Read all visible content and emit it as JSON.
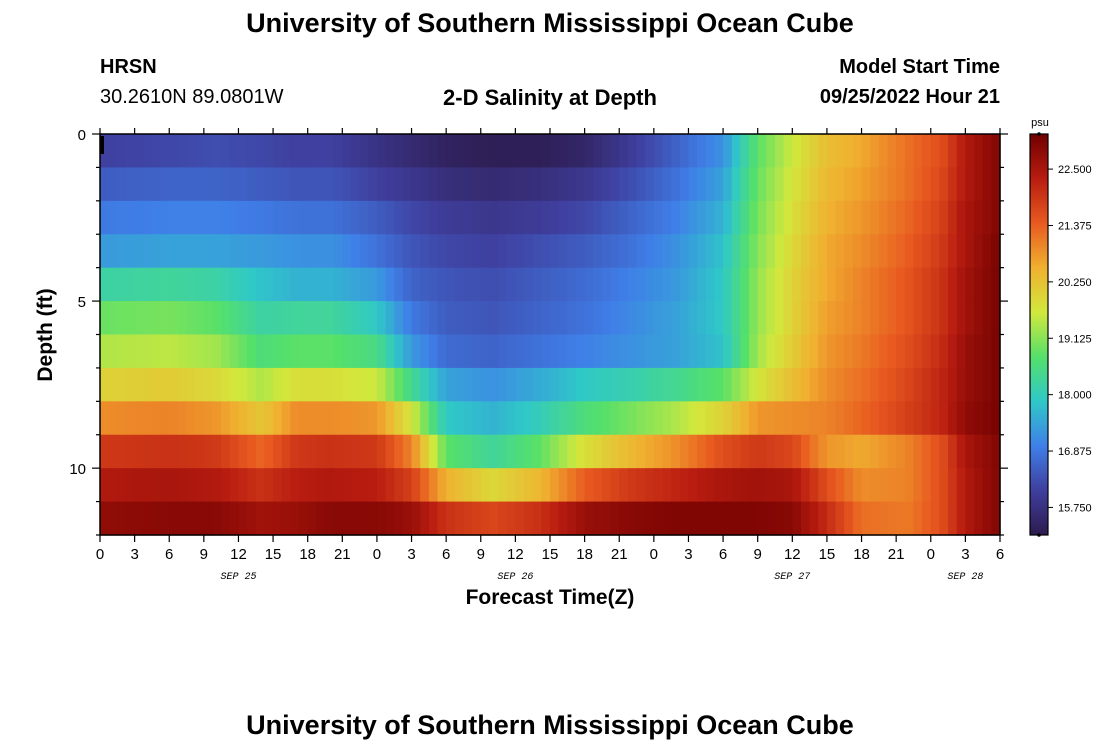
{
  "header": {
    "title": "University of Southern Mississippi Ocean Cube",
    "station": "HRSN",
    "coords": "30.2610N  89.0801W",
    "subtitle": "2-D Salinity at Depth",
    "model_start_label": "Model Start Time",
    "model_start_value": "09/25/2022 Hour 21",
    "footer_title": "University of Southern Mississippi Ocean Cube"
  },
  "chart_data": {
    "type": "heatmap",
    "title": "2-D Salinity at Depth",
    "xlabel": "Forecast Time(Z)",
    "ylabel": "Depth (ft)",
    "x_tick_labels": [
      "0",
      "3",
      "6",
      "9",
      "12",
      "15",
      "18",
      "21",
      "0",
      "3",
      "6",
      "9",
      "12",
      "15",
      "18",
      "21",
      "0",
      "3",
      "6",
      "9",
      "12",
      "15",
      "18",
      "21",
      "0",
      "3",
      "6"
    ],
    "x_date_labels": [
      {
        "label": "SEP 25",
        "tick_index": 4
      },
      {
        "label": "SEP 26",
        "tick_index": 12
      },
      {
        "label": "SEP 27",
        "tick_index": 20
      },
      {
        "label": "SEP 28",
        "tick_index": 25
      }
    ],
    "y_tick_labels": [
      "0",
      "5",
      "10"
    ],
    "y_tick_values": [
      0,
      5,
      10
    ],
    "ylim": [
      0,
      12
    ],
    "xlim_hours": [
      0,
      78
    ],
    "colorbar": {
      "unit": "psu",
      "min": 15.2,
      "max": 23.2,
      "ticks": [
        "15.750",
        "16.875",
        "18.000",
        "19.125",
        "20.250",
        "21.375",
        "22.500"
      ],
      "tick_values": [
        15.75,
        16.875,
        18.0,
        19.125,
        20.25,
        21.375,
        22.5
      ],
      "stops": [
        "#2d1b4e",
        "#3f3f9e",
        "#3f7fe8",
        "#2fc8c8",
        "#55e06a",
        "#d2e83c",
        "#f0b030",
        "#e85a20",
        "#b81c10",
        "#700000"
      ]
    },
    "depth_bins_ft": [
      0.5,
      1.5,
      2.5,
      3.5,
      4.5,
      5.5,
      6.5,
      7.5,
      8.5,
      9.5,
      10.5,
      11.5
    ],
    "time_knots_hours": [
      0,
      6,
      10,
      14,
      17,
      20,
      24,
      27,
      30,
      34,
      38,
      42,
      46,
      50,
      54,
      57,
      60,
      63,
      66,
      70,
      73,
      75,
      78
    ],
    "salinity": [
      [
        16.1,
        16.2,
        16.3,
        16.2,
        16.1,
        16.1,
        15.8,
        15.6,
        15.4,
        15.3,
        15.3,
        15.5,
        16.0,
        16.6,
        17.2,
        18.8,
        19.6,
        20.3,
        20.6,
        21.2,
        21.6,
        22.4,
        23.0
      ],
      [
        16.5,
        16.6,
        16.6,
        16.5,
        16.4,
        16.4,
        16.1,
        15.9,
        15.7,
        15.6,
        15.7,
        15.9,
        16.3,
        16.8,
        17.4,
        18.9,
        19.7,
        20.4,
        20.7,
        21.2,
        21.7,
        22.4,
        23.0
      ],
      [
        16.9,
        17.0,
        17.0,
        16.9,
        16.8,
        16.8,
        16.5,
        16.2,
        16.0,
        15.9,
        16.0,
        16.2,
        16.6,
        17.0,
        17.6,
        19.0,
        19.8,
        20.5,
        20.8,
        21.3,
        21.8,
        22.5,
        23.0
      ],
      [
        17.3,
        17.4,
        17.4,
        17.3,
        17.2,
        17.2,
        16.8,
        16.4,
        16.2,
        16.1,
        16.3,
        16.5,
        16.8,
        17.2,
        17.8,
        19.1,
        19.9,
        20.6,
        20.9,
        21.4,
        21.9,
        22.5,
        23.1
      ],
      [
        18.2,
        18.3,
        18.2,
        17.8,
        17.6,
        17.6,
        17.3,
        16.6,
        16.4,
        16.3,
        16.5,
        16.7,
        17.0,
        17.3,
        17.9,
        19.2,
        20.0,
        20.6,
        21.0,
        21.5,
        22.0,
        22.6,
        23.1
      ],
      [
        18.9,
        19.0,
        18.8,
        18.2,
        18.3,
        18.3,
        17.9,
        16.9,
        16.5,
        16.4,
        16.6,
        16.8,
        17.1,
        17.4,
        17.9,
        19.2,
        20.0,
        20.7,
        21.0,
        21.5,
        22.0,
        22.6,
        23.1
      ],
      [
        19.4,
        19.5,
        19.3,
        18.6,
        18.8,
        18.8,
        18.5,
        17.3,
        16.7,
        16.6,
        16.8,
        17.0,
        17.2,
        17.4,
        17.8,
        19.3,
        20.1,
        20.8,
        21.1,
        21.6,
        22.1,
        22.7,
        23.1
      ],
      [
        20.0,
        20.1,
        19.9,
        19.4,
        19.8,
        19.8,
        19.6,
        18.4,
        17.4,
        17.2,
        17.5,
        17.9,
        18.1,
        18.4,
        18.8,
        19.7,
        20.3,
        20.9,
        21.2,
        21.7,
        22.2,
        22.7,
        23.1
      ],
      [
        20.9,
        21.0,
        20.8,
        20.2,
        20.9,
        20.9,
        20.8,
        19.7,
        17.9,
        17.6,
        18.0,
        18.6,
        19.0,
        19.4,
        20.0,
        20.8,
        20.9,
        21.0,
        21.3,
        21.8,
        22.2,
        22.8,
        23.1
      ],
      [
        21.9,
        22.0,
        21.9,
        21.3,
        21.9,
        22.0,
        21.9,
        21.0,
        18.8,
        18.3,
        18.8,
        19.8,
        20.4,
        20.9,
        21.6,
        21.9,
        21.7,
        20.8,
        20.6,
        21.0,
        21.6,
        22.5,
        23.0
      ],
      [
        22.4,
        22.5,
        22.4,
        22.0,
        22.3,
        22.4,
        22.3,
        21.8,
        20.5,
        19.9,
        20.4,
        21.4,
        21.9,
        22.2,
        22.5,
        22.6,
        22.5,
        21.6,
        20.9,
        21.0,
        21.6,
        22.4,
        23.0
      ],
      [
        22.8,
        22.9,
        22.9,
        22.6,
        22.7,
        22.9,
        22.9,
        22.7,
        22.0,
        21.7,
        22.0,
        22.7,
        22.9,
        23.0,
        23.0,
        23.0,
        22.9,
        22.1,
        21.2,
        21.1,
        21.6,
        22.4,
        23.0
      ]
    ]
  }
}
